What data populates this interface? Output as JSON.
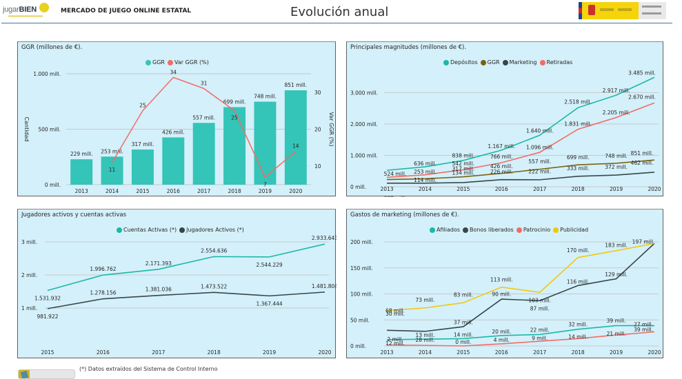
{
  "header": {
    "logo_text_light": "jugar",
    "logo_text_bold": "BIEN",
    "app_title": "MERCADO DE JUEGO ONLINE ESTATAL",
    "page_title": "Evolución anual",
    "gov_logo": "Gobierno de España - Ministerio de Consumo - Dirección General de Ordenación del Juego"
  },
  "footer": {
    "note": "(*) Datos extraídos del Sistema de Control Interno",
    "button_icon": "book-icon"
  },
  "chart_data": [
    {
      "id": "ggr",
      "type": "bar",
      "title": "GGR  (millones de €).",
      "categories": [
        "2013",
        "2014",
        "2015",
        "2016",
        "2017",
        "2018",
        "2019",
        "2020"
      ],
      "series": [
        {
          "name": "GGR",
          "kind": "bar",
          "axis": "left",
          "color": "#35c4b8",
          "values": [
            229,
            253,
            317,
            426,
            557,
            699,
            748,
            851
          ],
          "labels": [
            "229 mill.",
            "253 mill.",
            "317 mill.",
            "426 mill.",
            "557 mill.",
            "699 mill.",
            "748 mill.",
            "851 mill."
          ]
        },
        {
          "name": "Var GGR (%)",
          "kind": "line",
          "axis": "right",
          "color": "#f26c64",
          "values": [
            null,
            11,
            25,
            34,
            31,
            25,
            7,
            14
          ],
          "labels": [
            "",
            "11",
            "25",
            "34",
            "31",
            "25",
            "7",
            "14"
          ]
        }
      ],
      "ylabel": "Cantidad",
      "y2label": "Var GGR (%)",
      "ylim": [
        0,
        1000
      ],
      "yticks": [
        0,
        500,
        1000
      ],
      "ytick_labels": [
        "0 mill.",
        "500 mill.",
        "1.000 mill."
      ],
      "y2lim": [
        5,
        35
      ],
      "y2ticks": [
        10,
        20,
        30
      ],
      "y2tick_labels": [
        "10",
        "20",
        "30"
      ],
      "grid": true,
      "legend": "top-center"
    },
    {
      "id": "magnitudes",
      "type": "line",
      "title": "Principales magnitudes (millones de €).",
      "categories": [
        "2013",
        "2014",
        "2015",
        "2016",
        "2017",
        "2018",
        "2019",
        "2020"
      ],
      "series": [
        {
          "name": "Depósitos",
          "color": "#1ab8a6",
          "values": [
            524,
            636,
            838,
            1167,
            1640,
            2518,
            2917,
            3485
          ]
        },
        {
          "name": "GGR",
          "color": "#7a6110",
          "values": [
            229,
            253,
            317,
            426,
            557,
            699,
            748,
            851
          ]
        },
        {
          "name": "Marketing",
          "color": "#374649",
          "values": [
            114,
            114,
            134,
            226,
            222,
            333,
            372,
            462
          ]
        },
        {
          "name": "Retiradas",
          "color": "#f26c64",
          "values": [
            300,
            380,
            542,
            766,
            1096,
            1831,
            2205,
            2670
          ]
        }
      ],
      "point_labels": [
        {
          "x": "2013",
          "text": "524 mill."
        },
        {
          "x": "2013",
          "text": "229 mill."
        },
        {
          "x": "2014",
          "text": "636 mill."
        },
        {
          "x": "2014",
          "text": "253 mill."
        },
        {
          "x": "2014",
          "text": "114 mill."
        },
        {
          "x": "2015",
          "text": "838 mill."
        },
        {
          "x": "2015",
          "text": "542 mill."
        },
        {
          "x": "2015",
          "text": "317 mill."
        },
        {
          "x": "2015",
          "text": "134 mill."
        },
        {
          "x": "2016",
          "text": "1.167 mill."
        },
        {
          "x": "2016",
          "text": "766 mill."
        },
        {
          "x": "2016",
          "text": "426 mill."
        },
        {
          "x": "2016",
          "text": "226 mill."
        },
        {
          "x": "2017",
          "text": "1.640 mill."
        },
        {
          "x": "2017",
          "text": "1.096 mill."
        },
        {
          "x": "2017",
          "text": "557 mill."
        },
        {
          "x": "2017",
          "text": "222 mill."
        },
        {
          "x": "2018",
          "text": "2.518 mill."
        },
        {
          "x": "2018",
          "text": "1.831 mill."
        },
        {
          "x": "2018",
          "text": "699 mill."
        },
        {
          "x": "2018",
          "text": "333 mill."
        },
        {
          "x": "2019",
          "text": "2.917 mill."
        },
        {
          "x": "2019",
          "text": "2.205 mill."
        },
        {
          "x": "2019",
          "text": "748 mill."
        },
        {
          "x": "2019",
          "text": "372 mill."
        },
        {
          "x": "2020",
          "text": "3.485 mill."
        },
        {
          "x": "2020",
          "text": "2.670 mill."
        },
        {
          "x": "2020",
          "text": "851 mill."
        },
        {
          "x": "2020",
          "text": "462 mill."
        }
      ],
      "ylim": [
        0,
        3600
      ],
      "yticks": [
        0,
        1000,
        2000,
        3000
      ],
      "ytick_labels": [
        "0 mill.",
        "1.000 mill.",
        "2.000 mill.",
        "3.000 mill."
      ],
      "grid": true,
      "legend": "top-center"
    },
    {
      "id": "jugadores",
      "type": "line",
      "title": "Jugadores activos y cuentas activas",
      "categories": [
        "2015",
        "2016",
        "2017",
        "2018",
        "2019",
        "2020"
      ],
      "series": [
        {
          "name": "Cuentas Activas (*)",
          "color": "#1ab8a6",
          "values": [
            1531932,
            1996762,
            2171393,
            2554636,
            2544229,
            2933643
          ],
          "labels": [
            "1.531.932",
            "1.996.762",
            "2.171.393",
            "2.554.636",
            "2.544.229",
            "2.933.643"
          ]
        },
        {
          "name": "Jugadores Activos (*)",
          "color": "#374649",
          "values": [
            981922,
            1278156,
            1381036,
            1473522,
            1367444,
            1481804
          ],
          "labels": [
            "981.922",
            "1.278.156",
            "1.381.036",
            "1.473.522",
            "1.367.444",
            "1.481.804"
          ]
        }
      ],
      "ylim": [
        500000,
        3000000
      ],
      "yticks": [
        1000000,
        2000000,
        3000000
      ],
      "ytick_labels": [
        "1 mill.",
        "2 mill.",
        "3 mill."
      ],
      "grid": true,
      "legend": "top-center"
    },
    {
      "id": "marketing",
      "type": "line",
      "title": "Gastos de marketing (millones de €).",
      "categories": [
        "2013",
        "2014",
        "2015",
        "2016",
        "2017",
        "2018",
        "2019",
        "2020"
      ],
      "series": [
        {
          "name": "Afiliados",
          "color": "#1ab8a6",
          "values": [
            12,
            13,
            14,
            20,
            22,
            32,
            39,
            39
          ]
        },
        {
          "name": "Bonos liberados",
          "color": "#374649",
          "values": [
            30,
            28,
            37,
            90,
            87,
            116,
            129,
            197
          ]
        },
        {
          "name": "Patrocinio",
          "color": "#f26c64",
          "values": [
            2,
            1,
            0,
            4,
            9,
            14,
            21,
            27
          ]
        },
        {
          "name": "Publicidad",
          "color": "#f2c80f",
          "values": [
            68,
            73,
            83,
            113,
            103,
            170,
            183,
            197
          ]
        }
      ],
      "point_labels": [
        {
          "x": "2013",
          "text": "68 mill."
        },
        {
          "x": "2013",
          "text": "30 mill."
        },
        {
          "x": "2013",
          "text": "2 mill."
        },
        {
          "x": "2013",
          "text": "12 mill."
        },
        {
          "x": "2014",
          "text": "73 mill."
        },
        {
          "x": "2014",
          "text": "13 mill."
        },
        {
          "x": "2014",
          "text": "28 mill."
        },
        {
          "x": "2015",
          "text": "83 mill."
        },
        {
          "x": "2015",
          "text": "37 mill."
        },
        {
          "x": "2015",
          "text": "14 mill."
        },
        {
          "x": "2015",
          "text": "0 mill."
        },
        {
          "x": "2016",
          "text": "113 mill."
        },
        {
          "x": "2016",
          "text": "90 mill."
        },
        {
          "x": "2016",
          "text": "20 mill."
        },
        {
          "x": "2016",
          "text": "4 mill."
        },
        {
          "x": "2017",
          "text": "103 mill."
        },
        {
          "x": "2017",
          "text": "87 mill."
        },
        {
          "x": "2017",
          "text": "22 mill."
        },
        {
          "x": "2017",
          "text": "9 mill."
        },
        {
          "x": "2018",
          "text": "170 mill."
        },
        {
          "x": "2018",
          "text": "116 mill."
        },
        {
          "x": "2018",
          "text": "32 mill."
        },
        {
          "x": "2018",
          "text": "14 mill."
        },
        {
          "x": "2019",
          "text": "183 mill."
        },
        {
          "x": "2019",
          "text": "129 mill."
        },
        {
          "x": "2019",
          "text": "39 mill."
        },
        {
          "x": "2019",
          "text": "21 mill."
        },
        {
          "x": "2020",
          "text": "197 mill."
        },
        {
          "x": "2020",
          "text": "27 mill."
        },
        {
          "x": "2020",
          "text": "39 mill."
        }
      ],
      "ylim": [
        0,
        200
      ],
      "yticks": [
        0,
        50,
        100,
        150,
        200
      ],
      "ytick_labels": [
        "0 mill.",
        "50 mill.",
        "100 mill.",
        "150 mill.",
        "200 mill."
      ],
      "grid": true,
      "legend": "top-center"
    }
  ]
}
